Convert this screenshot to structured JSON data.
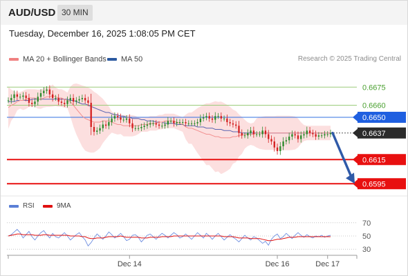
{
  "header": {
    "pair": "AUD/USD",
    "timeframe": "30 MIN"
  },
  "date": "Tuesday, December 16, 2025 1:08:05 PM CET",
  "legend": {
    "ma20": {
      "label": "MA 20 + Bollinger Bands",
      "color": "#f08080"
    },
    "ma50": {
      "label": "MA 50",
      "color": "#2c5aa0"
    }
  },
  "credit": "Research © 2025 Trading Central",
  "rsi_legend": {
    "rsi": {
      "label": "RSI",
      "color": "#5b7fd6"
    },
    "ma9": {
      "label": "9MA",
      "color": "#e01010"
    }
  },
  "chart_data": [
    {
      "type": "candlestick",
      "ylim": [
        0.6586,
        0.669
      ],
      "x_ticks": [
        "Dec 14",
        "Dec 16",
        "Dec 17"
      ],
      "levels": [
        {
          "value": 0.6675,
          "label": "0.6675",
          "kind": "resistance"
        },
        {
          "value": 0.666,
          "label": "0.6660",
          "kind": "resistance"
        },
        {
          "value": 0.665,
          "label": "0.6650",
          "kind": "pivot"
        },
        {
          "value": 0.6615,
          "label": "0.6615",
          "kind": "support"
        },
        {
          "value": 0.6595,
          "label": "0.6595",
          "kind": "support"
        }
      ],
      "current_price": {
        "value": 0.6637,
        "label": "0.6637"
      },
      "forecast": {
        "from": 0.6637,
        "to": 0.6595
      },
      "series": [
        {
          "name": "price",
          "values": [
            0.6664,
            0.6666,
            0.6669,
            0.6667,
            0.6667,
            0.6668,
            0.6666,
            0.6662,
            0.6661,
            0.6663,
            0.6667,
            0.667,
            0.6672,
            0.6673,
            0.6669,
            0.6666,
            0.6666,
            0.6663,
            0.6662,
            0.6661,
            0.6664,
            0.6666,
            0.6663,
            0.6664,
            0.6665,
            0.6666,
            0.6664,
            0.6662,
            0.6642,
            0.6638,
            0.6639,
            0.6641,
            0.6644,
            0.6643,
            0.6646,
            0.6649,
            0.6651,
            0.665,
            0.6648,
            0.6648,
            0.6649,
            0.6645,
            0.6641,
            0.6641,
            0.6641,
            0.6642,
            0.6643,
            0.6644,
            0.6645,
            0.6645,
            0.6644,
            0.6643,
            0.6643,
            0.6644,
            0.6647,
            0.6647,
            0.6645,
            0.6646,
            0.6646,
            0.6646,
            0.6645,
            0.6645,
            0.6645,
            0.6645,
            0.6646,
            0.6649,
            0.665,
            0.6651,
            0.6649,
            0.6648,
            0.6651,
            0.6651,
            0.6649,
            0.6649,
            0.6646,
            0.6645,
            0.6644,
            0.6643,
            0.6637,
            0.6635,
            0.6635,
            0.6637,
            0.6639,
            0.6636,
            0.6636,
            0.6636,
            0.6639,
            0.6636,
            0.6632,
            0.663,
            0.6625,
            0.6622,
            0.6626,
            0.663,
            0.6631,
            0.6634,
            0.6636,
            0.6635,
            0.6632,
            0.6635,
            0.6636,
            0.6639,
            0.6637,
            0.6636,
            0.6634,
            0.6635,
            0.6635,
            0.6636,
            0.6636,
            0.6637
          ]
        },
        {
          "name": "MA 20",
          "values": [
            0.6658,
            0.666,
            0.6661,
            0.6663,
            0.6664,
            0.6664,
            0.6665,
            0.6666,
            0.6666,
            0.6666,
            0.6665,
            0.6665,
            0.6666,
            0.6667,
            0.6667,
            0.6668,
            0.6667,
            0.6666,
            0.6666,
            0.6665,
            0.6664,
            0.6663,
            0.666,
            0.6657,
            0.6654,
            0.6651,
            0.6649,
            0.6648,
            0.6647,
            0.6646,
            0.6646,
            0.6646,
            0.6647,
            0.6647,
            0.6647,
            0.6646,
            0.6645,
            0.6644,
            0.6644,
            0.6643,
            0.6643,
            0.6643,
            0.6643,
            0.6643,
            0.6643,
            0.6644,
            0.6644,
            0.6644,
            0.6645,
            0.6645,
            0.6645,
            0.6646,
            0.6646,
            0.6647,
            0.6647,
            0.6647,
            0.6647,
            0.6646,
            0.6645,
            0.6644,
            0.6642,
            0.6641,
            0.6641,
            0.664,
            0.6639,
            0.6638,
            0.6637,
            0.6636,
            0.6636,
            0.6635,
            0.6634,
            0.6634,
            0.6633,
            0.6633,
            0.6633,
            0.6633,
            0.6634,
            0.6634,
            0.6635,
            0.6635,
            0.6636,
            0.6636,
            0.6636,
            0.6636,
            0.6637,
            0.6637,
            0.6637,
            0.6637,
            0.6637,
            0.6637,
            0.6637,
            0.6637,
            0.6637,
            0.6637,
            0.6637,
            0.6637,
            0.6637,
            0.6637,
            0.6637,
            0.6637,
            0.6637,
            0.6637,
            0.6637,
            0.6637,
            0.6637,
            0.6637,
            0.6637,
            0.6637,
            0.6637,
            0.6637
          ]
        },
        {
          "name": "MA 50",
          "values": [
            0.6663,
            0.6663,
            0.6663,
            0.6664,
            0.6664,
            0.6664,
            0.6664,
            0.6664,
            0.6665,
            0.6665,
            0.6665,
            0.6665,
            0.6665,
            0.6665,
            0.6665,
            0.6665,
            0.6665,
            0.6665,
            0.6665,
            0.6665,
            0.6665,
            0.6664,
            0.6664,
            0.6663,
            0.6662,
            0.6661,
            0.6661,
            0.666,
            0.6659,
            0.6658,
            0.6657,
            0.6656,
            0.6655,
            0.6654,
            0.6654,
            0.6653,
            0.6652,
            0.6652,
            0.6651,
            0.6651,
            0.665,
            0.665,
            0.6649,
            0.6649,
            0.6649,
            0.6648,
            0.6648,
            0.6647,
            0.6647,
            0.6647,
            0.6646,
            0.6646,
            0.6646,
            0.6645,
            0.6645,
            0.6645,
            0.6645,
            0.6644,
            0.6644,
            0.6644,
            0.6643,
            0.6643,
            0.6643,
            0.6643,
            0.6642,
            0.6642,
            0.6642,
            0.6641,
            0.6641,
            0.6641,
            0.664,
            0.664,
            0.664,
            0.6639,
            0.6639,
            0.6639,
            0.6638,
            0.6638,
            0.6638,
            0.6637,
            0.6637,
            0.6637,
            0.6637,
            0.6637,
            0.6637,
            0.6637,
            0.6637,
            0.6637,
            0.6637,
            0.6637,
            0.6637,
            0.6637,
            0.6637,
            0.6637,
            0.6637,
            0.6637,
            0.6637,
            0.6637,
            0.6637,
            0.6637,
            0.6637,
            0.6637,
            0.6637,
            0.6637,
            0.6637,
            0.6637,
            0.6637,
            0.6637,
            0.6637,
            0.6637
          ]
        }
      ]
    },
    {
      "type": "line",
      "ylim": [
        25,
        75
      ],
      "y_ticks": [
        70,
        50,
        30
      ],
      "series": [
        {
          "name": "RSI",
          "values": [
            50,
            52,
            56,
            60,
            55,
            47,
            52,
            57,
            49,
            44,
            50,
            55,
            58,
            52,
            47,
            54,
            49,
            47,
            51,
            55,
            50,
            44,
            48,
            52,
            55,
            49,
            44,
            35,
            40,
            47,
            53,
            49,
            45,
            50,
            56,
            52,
            47,
            50,
            54,
            49,
            43,
            45,
            51,
            52,
            48,
            41,
            46,
            51,
            53,
            49,
            45,
            50,
            54,
            51,
            47,
            51,
            55,
            52,
            47,
            49,
            53,
            49,
            45,
            50,
            55,
            51,
            47,
            54,
            50,
            45,
            50,
            54,
            49,
            44,
            48,
            52,
            48,
            45,
            41,
            46,
            51,
            47,
            44,
            49,
            47,
            43,
            39,
            42,
            36,
            45,
            50,
            53,
            46,
            49,
            54,
            50,
            46,
            51,
            55,
            51,
            48,
            52,
            49,
            47,
            50,
            49,
            51,
            48,
            50,
            51
          ]
        },
        {
          "name": "9MA",
          "values": [
            50,
            51,
            52,
            53,
            53,
            52,
            52,
            52,
            52,
            51,
            51,
            51,
            52,
            52,
            51,
            51,
            51,
            51,
            51,
            51,
            51,
            50,
            50,
            50,
            50,
            49,
            49,
            47,
            46,
            46,
            47,
            47,
            47,
            48,
            49,
            49,
            49,
            49,
            50,
            49,
            48,
            48,
            48,
            48,
            48,
            47,
            47,
            47,
            48,
            48,
            48,
            48,
            49,
            49,
            49,
            49,
            50,
            50,
            50,
            50,
            50,
            50,
            50,
            50,
            50,
            50,
            50,
            50,
            50,
            50,
            50,
            50,
            50,
            49,
            49,
            49,
            49,
            48,
            47,
            47,
            47,
            47,
            46,
            46,
            46,
            46,
            45,
            44,
            43,
            43,
            44,
            45,
            45,
            46,
            47,
            48,
            48,
            48,
            49,
            49,
            49,
            49,
            49,
            49,
            49,
            49,
            49,
            49,
            49,
            49
          ]
        }
      ]
    }
  ]
}
